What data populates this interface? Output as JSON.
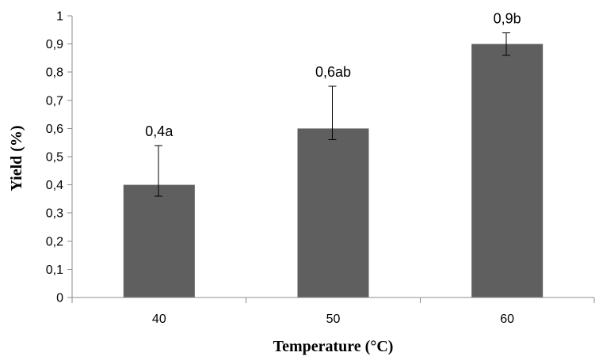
{
  "chart_data": {
    "type": "bar",
    "categories": [
      "40",
      "50",
      "60"
    ],
    "values": [
      0.4,
      0.6,
      0.9
    ],
    "error_upper": [
      0.54,
      0.75,
      0.94
    ],
    "error_lower": [
      0.36,
      0.56,
      0.86
    ],
    "data_labels": [
      "0,4a",
      "0,6ab",
      "0,9b"
    ],
    "xlabel": "Temperature (°C)",
    "ylabel": "Yield (%)",
    "ylim": [
      0,
      1
    ],
    "yticks": [
      {
        "value": 0,
        "label": "0"
      },
      {
        "value": 0.1,
        "label": "0,1"
      },
      {
        "value": 0.2,
        "label": "0,2"
      },
      {
        "value": 0.3,
        "label": "0,3"
      },
      {
        "value": 0.4,
        "label": "0,4"
      },
      {
        "value": 0.5,
        "label": "0,5"
      },
      {
        "value": 0.6,
        "label": "0,6"
      },
      {
        "value": 0.7,
        "label": "0,7"
      },
      {
        "value": 0.8,
        "label": "0,8"
      },
      {
        "value": 0.9,
        "label": "0,9"
      },
      {
        "value": 1,
        "label": "1"
      }
    ],
    "grid": false,
    "legend": "none",
    "bar_color": "#5f5f5f"
  }
}
